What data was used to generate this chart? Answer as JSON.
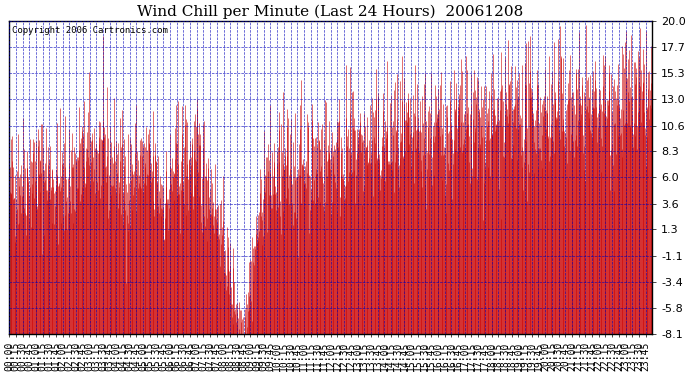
{
  "title": "Wind Chill per Minute (Last 24 Hours)  20061208",
  "copyright": "Copyright 2006 Cartronics.com",
  "yticks": [
    20.0,
    17.7,
    15.3,
    13.0,
    10.6,
    8.3,
    6.0,
    3.6,
    1.3,
    -1.1,
    -3.4,
    -5.8,
    -8.1
  ],
  "ymin": -8.1,
  "ymax": 20.0,
  "bg_color": "#ffffff",
  "plot_bg_color": "#ffffff",
  "bar_color": "#cc0000",
  "grid_color": "#0000bb",
  "border_color": "#000000",
  "title_fontsize": 11,
  "copyright_fontsize": 6.5,
  "tick_fontsize": 7,
  "total_minutes": 1440,
  "seed": 42
}
